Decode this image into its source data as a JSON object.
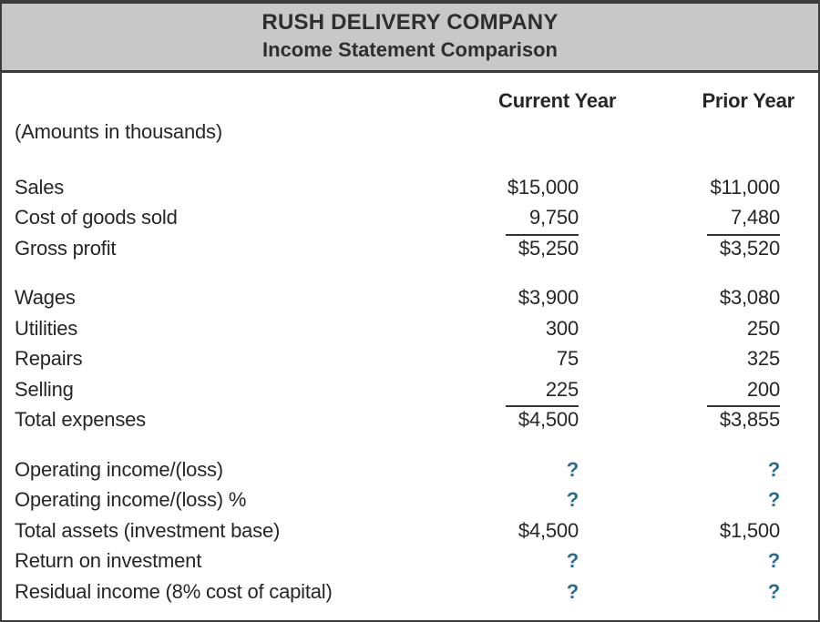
{
  "header": {
    "company": "RUSH DELIVERY COMPANY",
    "subtitle": "Income Statement Comparison"
  },
  "columns": {
    "current": "Current Year",
    "prior": "Prior Year"
  },
  "note": "(Amounts in thousands)",
  "colors": {
    "accent_blue": "#2b6c8e",
    "banner_gray": "#c8c8c8",
    "border_dark": "#3a3a3a",
    "text": "#262626"
  },
  "sections": [
    {
      "rows": [
        {
          "label": "Sales",
          "current": "$15,000",
          "prior": "$11,000"
        },
        {
          "label": "Cost of goods sold",
          "current": "9,750",
          "prior": "7,480",
          "underline": true
        },
        {
          "label": "Gross profit",
          "current": "$5,250",
          "prior": "$3,520"
        }
      ]
    },
    {
      "rows": [
        {
          "label": "Wages",
          "current": "$3,900",
          "prior": "$3,080"
        },
        {
          "label": "Utilities",
          "current": "300",
          "prior": "250"
        },
        {
          "label": "Repairs",
          "current": "75",
          "prior": "325"
        },
        {
          "label": "Selling",
          "current": "225",
          "prior": "200",
          "underline": true
        },
        {
          "label": "Total expenses",
          "current": "$4,500",
          "prior": "$3,855"
        }
      ]
    },
    {
      "rows": [
        {
          "label": "Operating income/(loss)",
          "current": "?",
          "prior": "?"
        },
        {
          "label": "Operating income/(loss) %",
          "current": "?",
          "prior": "?"
        },
        {
          "label": "Total assets (investment base)",
          "current": "$4,500",
          "prior": "$1,500"
        },
        {
          "label": "Return on investment",
          "current": "?",
          "prior": "?"
        },
        {
          "label": "Residual income (8% cost of capital)",
          "current": "?",
          "prior": "?"
        }
      ]
    }
  ]
}
